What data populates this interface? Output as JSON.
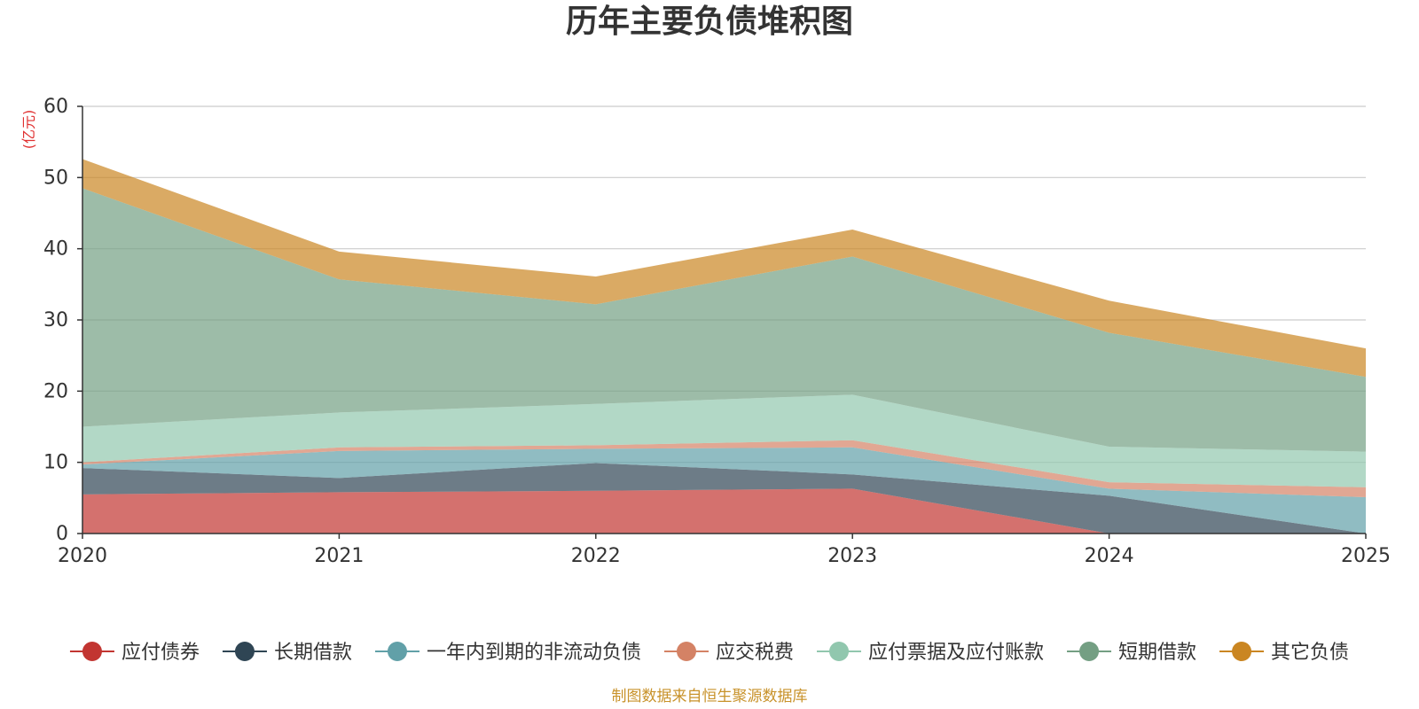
{
  "chart_data": {
    "type": "area",
    "stacked": true,
    "title": "历年主要负债堆积图",
    "unit_label": "(亿元)",
    "source": "制图数据来自恒生聚源数据库",
    "x": [
      "2020",
      "2021",
      "2022",
      "2023",
      "2024",
      "2025"
    ],
    "ylim": [
      0,
      60
    ],
    "yticks": [
      0,
      10,
      20,
      30,
      40,
      50,
      60
    ],
    "grid": true,
    "legend_position": "bottom",
    "series": [
      {
        "name": "应付债券",
        "color": "#c23531",
        "values": [
          5.5,
          5.8,
          6.0,
          6.3,
          0.0,
          0.0
        ]
      },
      {
        "name": "长期借款",
        "color": "#2f4554",
        "values": [
          3.7,
          2.0,
          3.9,
          2.0,
          5.3,
          0.0
        ]
      },
      {
        "name": "一年内到期的非流动负债",
        "color": "#61a0a8",
        "values": [
          0.5,
          3.8,
          2.0,
          3.8,
          1.0,
          5.1
        ]
      },
      {
        "name": "应交税费",
        "color": "#d48265",
        "values": [
          0.3,
          0.5,
          0.5,
          1.0,
          0.9,
          1.4
        ]
      },
      {
        "name": "应付票据及应付账款",
        "color": "#91c7ae",
        "values": [
          5.0,
          4.9,
          5.8,
          6.4,
          5.0,
          5.0
        ]
      },
      {
        "name": "短期借款",
        "color": "#749f83",
        "values": [
          33.5,
          18.7,
          14.0,
          19.4,
          16.0,
          10.5
        ]
      },
      {
        "name": "其它负债",
        "color": "#ca8622",
        "values": [
          4.1,
          3.9,
          3.9,
          3.8,
          4.5,
          4.0
        ]
      }
    ]
  }
}
